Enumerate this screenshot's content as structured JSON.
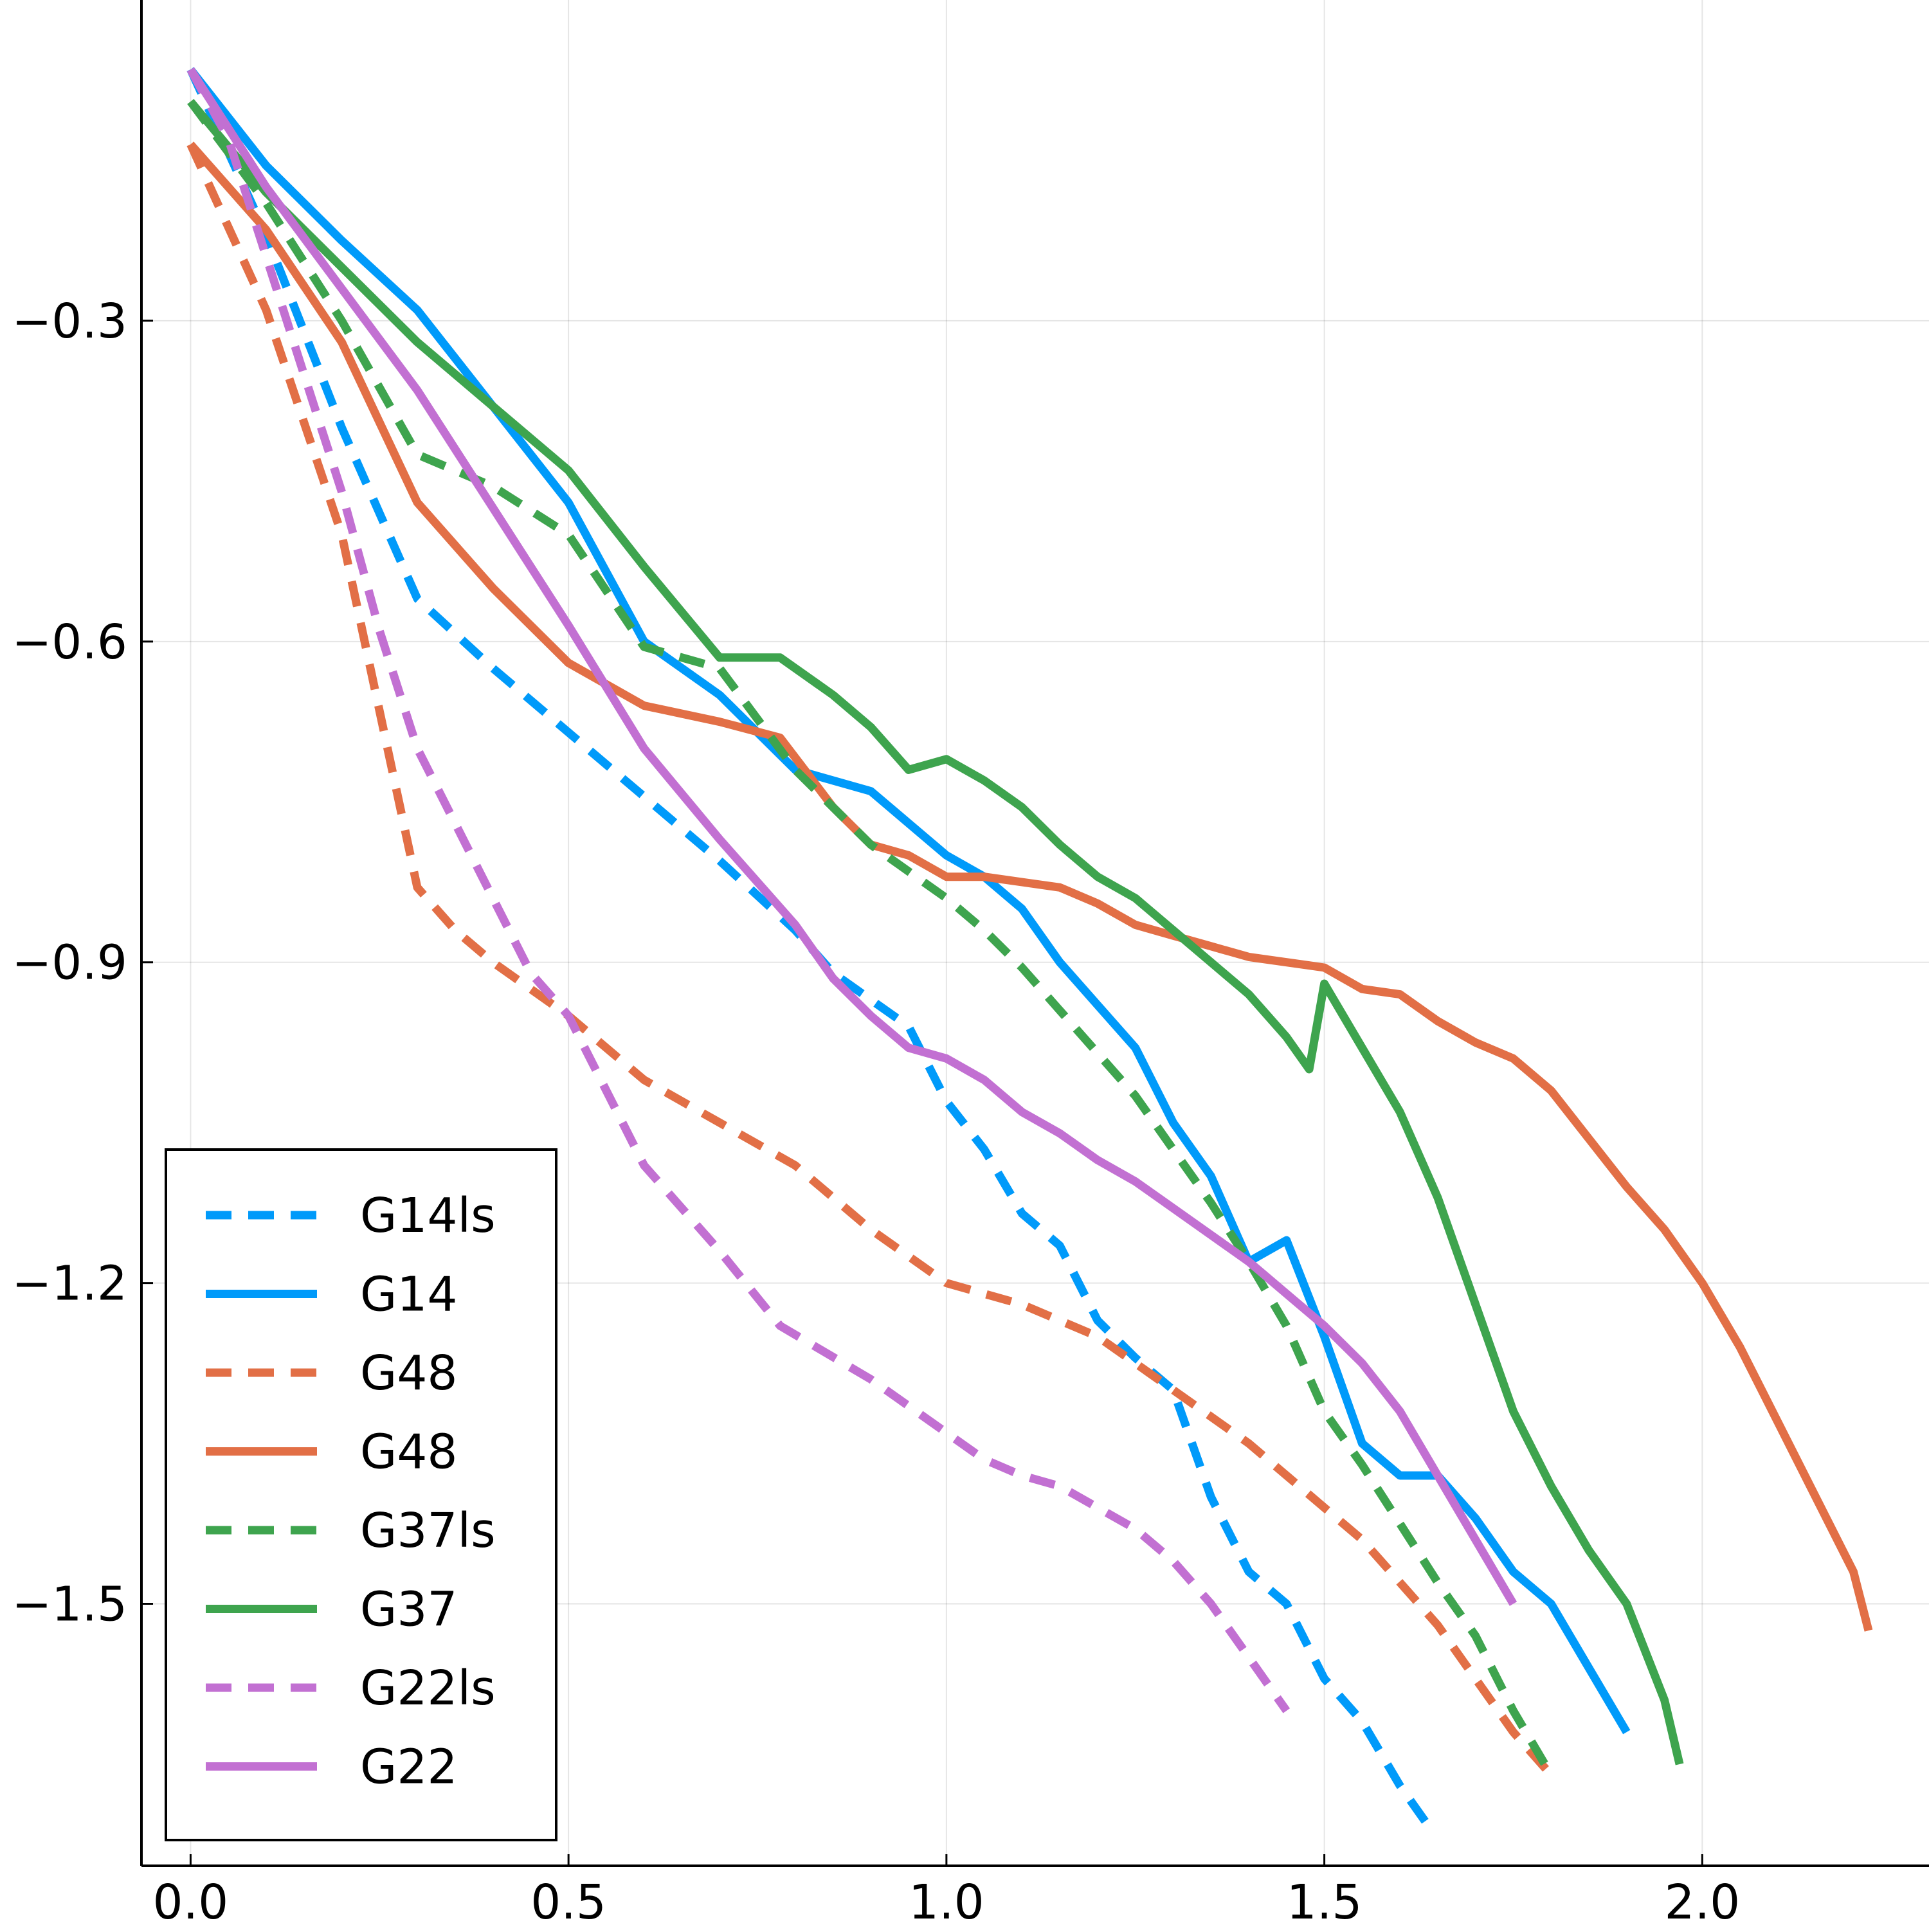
{
  "chart_data": {
    "type": "line",
    "title": "",
    "xlabel": "",
    "ylabel": "",
    "xlim": [
      -0.065,
      2.3
    ],
    "ylim": [
      -1.745,
      0.0
    ],
    "xticks": [
      0.0,
      0.5,
      1.0,
      1.5,
      2.0
    ],
    "xtick_labels": [
      "0.0",
      "0.5",
      "1.0",
      "1.5",
      "2.0"
    ],
    "yticks": [
      -0.3,
      -0.6,
      -0.9,
      -1.2,
      -1.5
    ],
    "ytick_labels": [
      "−0.3",
      "−0.6",
      "−0.9",
      "−1.2",
      "−1.5"
    ],
    "grid": true,
    "legend_position": "bottom-left",
    "series": [
      {
        "name": "G14ls",
        "color": "#009AFA",
        "dash": true,
        "x": [
          0.0,
          0.1,
          0.2,
          0.3,
          0.4,
          0.5,
          0.6,
          0.7,
          0.8,
          0.85,
          0.9,
          0.95,
          1.0,
          1.05,
          1.1,
          1.15,
          1.2,
          1.25,
          1.3,
          1.35,
          1.4,
          1.45,
          1.5,
          1.55,
          1.6,
          1.64
        ],
        "y": [
          -0.065,
          -0.22,
          -0.4,
          -0.56,
          -0.625,
          -0.685,
          -0.745,
          -0.805,
          -0.87,
          -0.91,
          -0.935,
          -0.96,
          -1.03,
          -1.075,
          -1.135,
          -1.165,
          -1.235,
          -1.27,
          -1.3,
          -1.4,
          -1.47,
          -1.5,
          -1.57,
          -1.61,
          -1.67,
          -1.71
        ]
      },
      {
        "name": "G14",
        "color": "#009AFA",
        "dash": false,
        "x": [
          0.0,
          0.1,
          0.2,
          0.3,
          0.4,
          0.5,
          0.6,
          0.7,
          0.8,
          0.9,
          1.0,
          1.05,
          1.1,
          1.15,
          1.2,
          1.25,
          1.3,
          1.35,
          1.4,
          1.45,
          1.5,
          1.55,
          1.6,
          1.65,
          1.7,
          1.75,
          1.8,
          1.85,
          1.9
        ],
        "y": [
          -0.065,
          -0.155,
          -0.225,
          -0.29,
          -0.38,
          -0.47,
          -0.6,
          -0.65,
          -0.72,
          -0.74,
          -0.8,
          -0.82,
          -0.85,
          -0.9,
          -0.94,
          -0.98,
          -1.05,
          -1.1,
          -1.18,
          -1.16,
          -1.25,
          -1.35,
          -1.38,
          -1.38,
          -1.42,
          -1.47,
          -1.5,
          -1.56,
          -1.62
        ]
      },
      {
        "name": "G48",
        "color": "#E26F46",
        "dash": true,
        "x": [
          0.0,
          0.1,
          0.2,
          0.3,
          0.35,
          0.4,
          0.5,
          0.6,
          0.7,
          0.8,
          0.9,
          1.0,
          1.1,
          1.2,
          1.3,
          1.4,
          1.5,
          1.55,
          1.6,
          1.65,
          1.7,
          1.75,
          1.8
        ],
        "y": [
          -0.135,
          -0.29,
          -0.5,
          -0.83,
          -0.87,
          -0.9,
          -0.95,
          -1.01,
          -1.05,
          -1.09,
          -1.15,
          -1.2,
          -1.22,
          -1.25,
          -1.3,
          -1.35,
          -1.41,
          -1.44,
          -1.48,
          -1.52,
          -1.57,
          -1.62,
          -1.66
        ]
      },
      {
        "name": "G48",
        "color": "#E26F46",
        "dash": false,
        "x": [
          0.0,
          0.1,
          0.2,
          0.3,
          0.4,
          0.5,
          0.6,
          0.7,
          0.78,
          0.85,
          0.9,
          0.95,
          1.0,
          1.05,
          1.1,
          1.15,
          1.2,
          1.25,
          1.3,
          1.35,
          1.4,
          1.45,
          1.5,
          1.55,
          1.6,
          1.65,
          1.7,
          1.75,
          1.8,
          1.85,
          1.9,
          1.95,
          2.0,
          2.05,
          2.1,
          2.15,
          2.2,
          2.22
        ],
        "y": [
          -0.135,
          -0.215,
          -0.32,
          -0.47,
          -0.55,
          -0.62,
          -0.66,
          -0.675,
          -0.69,
          -0.755,
          -0.79,
          -0.8,
          -0.82,
          -0.82,
          -0.825,
          -0.83,
          -0.845,
          -0.865,
          -0.875,
          -0.885,
          -0.895,
          -0.9,
          -0.905,
          -0.925,
          -0.93,
          -0.955,
          -0.975,
          -0.99,
          -1.02,
          -1.065,
          -1.11,
          -1.15,
          -1.2,
          -1.26,
          -1.33,
          -1.4,
          -1.47,
          -1.525
        ]
      },
      {
        "name": "G37ls",
        "color": "#3EA44E",
        "dash": true,
        "x": [
          0.0,
          0.1,
          0.2,
          0.3,
          0.4,
          0.5,
          0.6,
          0.7,
          0.8,
          0.9,
          1.0,
          1.05,
          1.1,
          1.15,
          1.2,
          1.25,
          1.3,
          1.35,
          1.4,
          1.45,
          1.5,
          1.55,
          1.6,
          1.65,
          1.7,
          1.75,
          1.8
        ],
        "y": [
          -0.095,
          -0.19,
          -0.3,
          -0.425,
          -0.455,
          -0.5,
          -0.605,
          -0.625,
          -0.72,
          -0.79,
          -0.84,
          -0.87,
          -0.905,
          -0.945,
          -0.985,
          -1.025,
          -1.075,
          -1.125,
          -1.18,
          -1.24,
          -1.32,
          -1.37,
          -1.425,
          -1.48,
          -1.53,
          -1.6,
          -1.66
        ]
      },
      {
        "name": "G37",
        "color": "#3EA44E",
        "dash": false,
        "x": [
          0.0,
          0.1,
          0.2,
          0.3,
          0.4,
          0.5,
          0.6,
          0.7,
          0.78,
          0.85,
          0.9,
          0.95,
          1.0,
          1.05,
          1.1,
          1.15,
          1.2,
          1.25,
          1.3,
          1.35,
          1.4,
          1.45,
          1.48,
          1.5,
          1.55,
          1.6,
          1.65,
          1.7,
          1.75,
          1.8,
          1.85,
          1.9,
          1.95,
          1.97
        ],
        "y": [
          -0.095,
          -0.18,
          -0.25,
          -0.32,
          -0.38,
          -0.44,
          -0.53,
          -0.615,
          -0.615,
          -0.65,
          -0.68,
          -0.72,
          -0.71,
          -0.73,
          -0.755,
          -0.79,
          -0.82,
          -0.84,
          -0.87,
          -0.9,
          -0.93,
          -0.97,
          -1.0,
          -0.92,
          -0.98,
          -1.04,
          -1.12,
          -1.22,
          -1.32,
          -1.39,
          -1.45,
          -1.5,
          -1.59,
          -1.65
        ]
      },
      {
        "name": "G22ls",
        "color": "#C270D2",
        "dash": true,
        "x": [
          0.0,
          0.05,
          0.1,
          0.15,
          0.2,
          0.25,
          0.3,
          0.35,
          0.4,
          0.45,
          0.5,
          0.6,
          0.7,
          0.78,
          0.9,
          1.0,
          1.05,
          1.1,
          1.15,
          1.2,
          1.25,
          1.3,
          1.35,
          1.4,
          1.45
        ],
        "y": [
          -0.065,
          -0.13,
          -0.24,
          -0.35,
          -0.46,
          -0.59,
          -0.7,
          -0.77,
          -0.84,
          -0.91,
          -0.95,
          -1.09,
          -1.17,
          -1.24,
          -1.29,
          -1.34,
          -1.365,
          -1.38,
          -1.39,
          -1.41,
          -1.43,
          -1.46,
          -1.5,
          -1.55,
          -1.6
        ]
      },
      {
        "name": "G22",
        "color": "#C270D2",
        "dash": false,
        "x": [
          0.0,
          0.1,
          0.2,
          0.3,
          0.4,
          0.5,
          0.6,
          0.7,
          0.8,
          0.85,
          0.9,
          0.95,
          1.0,
          1.05,
          1.1,
          1.15,
          1.2,
          1.25,
          1.3,
          1.35,
          1.4,
          1.45,
          1.5,
          1.55,
          1.6,
          1.65,
          1.7,
          1.75
        ],
        "y": [
          -0.065,
          -0.175,
          -0.27,
          -0.365,
          -0.475,
          -0.585,
          -0.7,
          -0.785,
          -0.865,
          -0.915,
          -0.95,
          -0.98,
          -0.99,
          -1.01,
          -1.04,
          -1.06,
          -1.085,
          -1.105,
          -1.13,
          -1.155,
          -1.18,
          -1.21,
          -1.24,
          -1.275,
          -1.32,
          -1.38,
          -1.44,
          -1.5
        ]
      }
    ]
  }
}
